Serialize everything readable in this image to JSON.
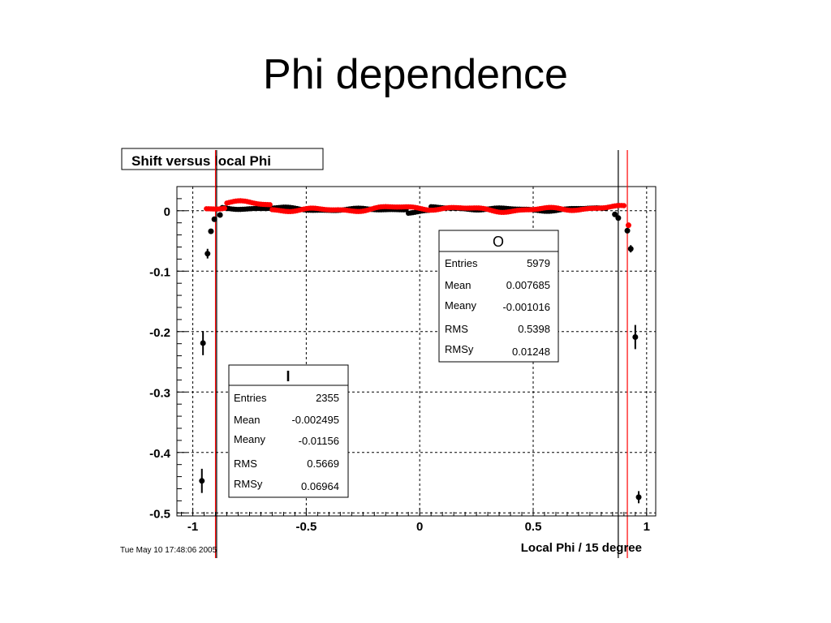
{
  "slide": {
    "title": "Phi dependence"
  },
  "chart_data": {
    "type": "scatter",
    "title": "Shift versus local Phi",
    "xlabel": "Local Phi / 15 degree",
    "ylabel": "",
    "xlim": [
      -1.07,
      1.04
    ],
    "ylim": [
      -0.505,
      0.04
    ],
    "grid": true,
    "timestamp": "Tue May 10 17:48:06 2005",
    "x_ticks": [
      "-1",
      "-0.5",
      "0",
      "0.5",
      "1"
    ],
    "y_ticks": [
      "0",
      "-0.1",
      "-0.2",
      "-0.3",
      "-0.4",
      "-0.5"
    ],
    "x_tick_values": [
      -1,
      -0.5,
      0,
      0.5,
      1
    ],
    "y_tick_values": [
      0,
      -0.1,
      -0.2,
      -0.3,
      -0.4,
      -0.5
    ],
    "vertical_lines": [
      {
        "x": -0.9,
        "color": "#ff0000"
      },
      {
        "x": -0.895,
        "color": "#000000"
      },
      {
        "x": 0.875,
        "color": "#000000"
      },
      {
        "x": 0.915,
        "color": "#ff0000"
      }
    ],
    "series": [
      {
        "color": "#000000",
        "points": [
          [
            -0.96,
            -0.447,
            0.02
          ],
          [
            -0.955,
            -0.219,
            0.02
          ],
          [
            -0.935,
            -0.071,
            0.008
          ],
          [
            -0.92,
            -0.034,
            0.004
          ],
          [
            -0.905,
            -0.014,
            0.004
          ],
          [
            -0.88,
            -0.007,
            0.004
          ]
        ],
        "band": {
          "x_start": -0.87,
          "x_end": 0.82,
          "step": 0.01,
          "base": 0.003,
          "amp": 0.004
        }
      },
      {
        "color": "#000000",
        "points": [
          [
            0.86,
            -0.006,
            0.004
          ],
          [
            0.875,
            -0.012,
            0.004
          ],
          [
            0.915,
            -0.033,
            0.004
          ],
          [
            0.93,
            -0.063,
            0.006
          ],
          [
            0.95,
            -0.209,
            0.02
          ],
          [
            0.965,
            -0.474,
            0.01
          ]
        ]
      },
      {
        "color": "#ff0000",
        "points": [
          [
            0.92,
            -0.024,
            0.004
          ]
        ],
        "band": {
          "x_start": -0.94,
          "x_end": 0.9,
          "step": 0.01,
          "base": 0.003,
          "amp": 0.006
        }
      }
    ],
    "stat_boxes": [
      {
        "name": "O",
        "rows": [
          {
            "label": "Entries",
            "value": "5979"
          },
          {
            "label": "Mean",
            "value": "0.007685"
          },
          {
            "label": "Meany",
            "value": "-0.001016"
          },
          {
            "label": "RMS",
            "value": "0.5398"
          },
          {
            "label": "RMSy",
            "value": "0.01248"
          }
        ]
      },
      {
        "name": "I",
        "rows": [
          {
            "label": "Entries",
            "value": "2355"
          },
          {
            "label": "Mean",
            "value": "-0.002495"
          },
          {
            "label": "Meany",
            "value": "-0.01156"
          },
          {
            "label": "RMS",
            "value": "0.5669"
          },
          {
            "label": "RMSy",
            "value": "0.06964"
          }
        ]
      }
    ]
  }
}
